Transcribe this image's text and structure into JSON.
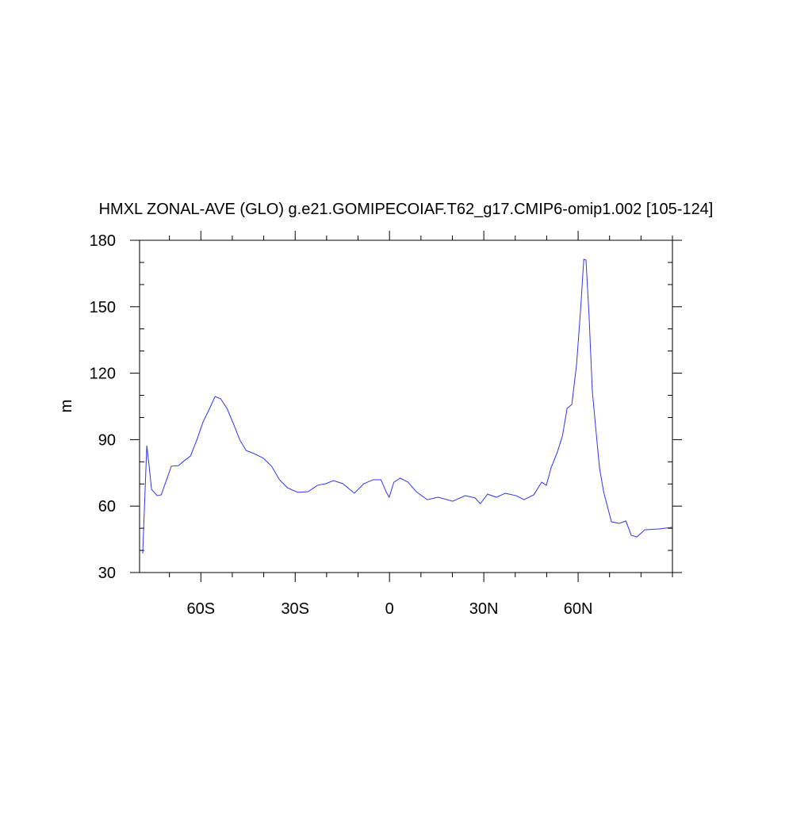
{
  "chart_data": {
    "type": "line",
    "title": "HMXL ZONAL-AVE (GLO) g.e21.GOMIPECOIAF.T62_g17.CMIP6-omip1.002 [105-124]",
    "ylabel": "m",
    "xlim": [
      -79.5,
      90
    ],
    "ylim": [
      30,
      180
    ],
    "xticks": [
      {
        "value": -60,
        "label": "60S"
      },
      {
        "value": -30,
        "label": "30S"
      },
      0,
      {
        "value": 30,
        "label": "30N"
      },
      {
        "value": 60,
        "label": "60N"
      }
    ],
    "xminorticks": [
      -70,
      -50,
      -40,
      -20,
      -10,
      10,
      20,
      40,
      50,
      70,
      80,
      90
    ],
    "yticks": [
      30,
      60,
      90,
      120,
      150,
      180
    ],
    "yminorticks": [
      40,
      50,
      70,
      80,
      100,
      110,
      130,
      140,
      160,
      170
    ],
    "grid": false,
    "series": [
      {
        "color": "#3333ee",
        "x": [
          -78.5,
          -77.2,
          -76.4,
          -75.7,
          -73.9,
          -72.6,
          -70.9,
          -69.4,
          -67.1,
          -65.3,
          -63.3,
          -61.3,
          -59.3,
          -57.2,
          -55.5,
          -53.7,
          -51.7,
          -49.6,
          -47.6,
          -45.6,
          -43.1,
          -40.1,
          -37.5,
          -35,
          -32.5,
          -29.2,
          -25.9,
          -22.9,
          -20.3,
          -17.8,
          -14.8,
          -11.2,
          -8.2,
          -5.2,
          -2.7,
          -1.1,
          -0.1,
          1.4,
          3.4,
          5.9,
          8.5,
          12,
          15.5,
          20.1,
          24.1,
          27.2,
          28.9,
          31.2,
          34,
          36.8,
          40.3,
          42.8,
          45.9,
          48.4,
          49.9,
          51.4,
          53.4,
          55,
          56.5,
          58,
          59.5,
          60.8,
          61.8,
          62.5,
          63.5,
          64.5,
          65.6,
          66.8,
          68.1,
          69.4,
          70.6,
          73.1,
          75.2,
          76.9,
          78.7,
          81.2,
          85.8,
          89.8
        ],
        "values": [
          38.6,
          87.3,
          77.3,
          67.6,
          64.7,
          65.1,
          71.9,
          78,
          78.3,
          80.5,
          82.6,
          89.8,
          98,
          104.1,
          109.5,
          108.4,
          104.1,
          97,
          89.8,
          85.1,
          83.7,
          81.6,
          78,
          71.9,
          68.3,
          66.2,
          66.5,
          69.4,
          70.1,
          71.5,
          70.1,
          65.8,
          70.1,
          71.9,
          71.9,
          66.5,
          64,
          70.8,
          72.6,
          70.8,
          66.5,
          62.9,
          64,
          62.2,
          64.7,
          63.7,
          61.1,
          65.4,
          64,
          65.8,
          64.7,
          62.9,
          65.1,
          70.8,
          69.4,
          77.3,
          84.4,
          91.6,
          104.1,
          105.9,
          123.8,
          148.9,
          171.4,
          171.1,
          145.3,
          112.3,
          95.2,
          77.3,
          66.5,
          59.4,
          52.9,
          52.2,
          53.3,
          46.8,
          46.1,
          49.3,
          49.7,
          50.4
        ]
      }
    ]
  }
}
